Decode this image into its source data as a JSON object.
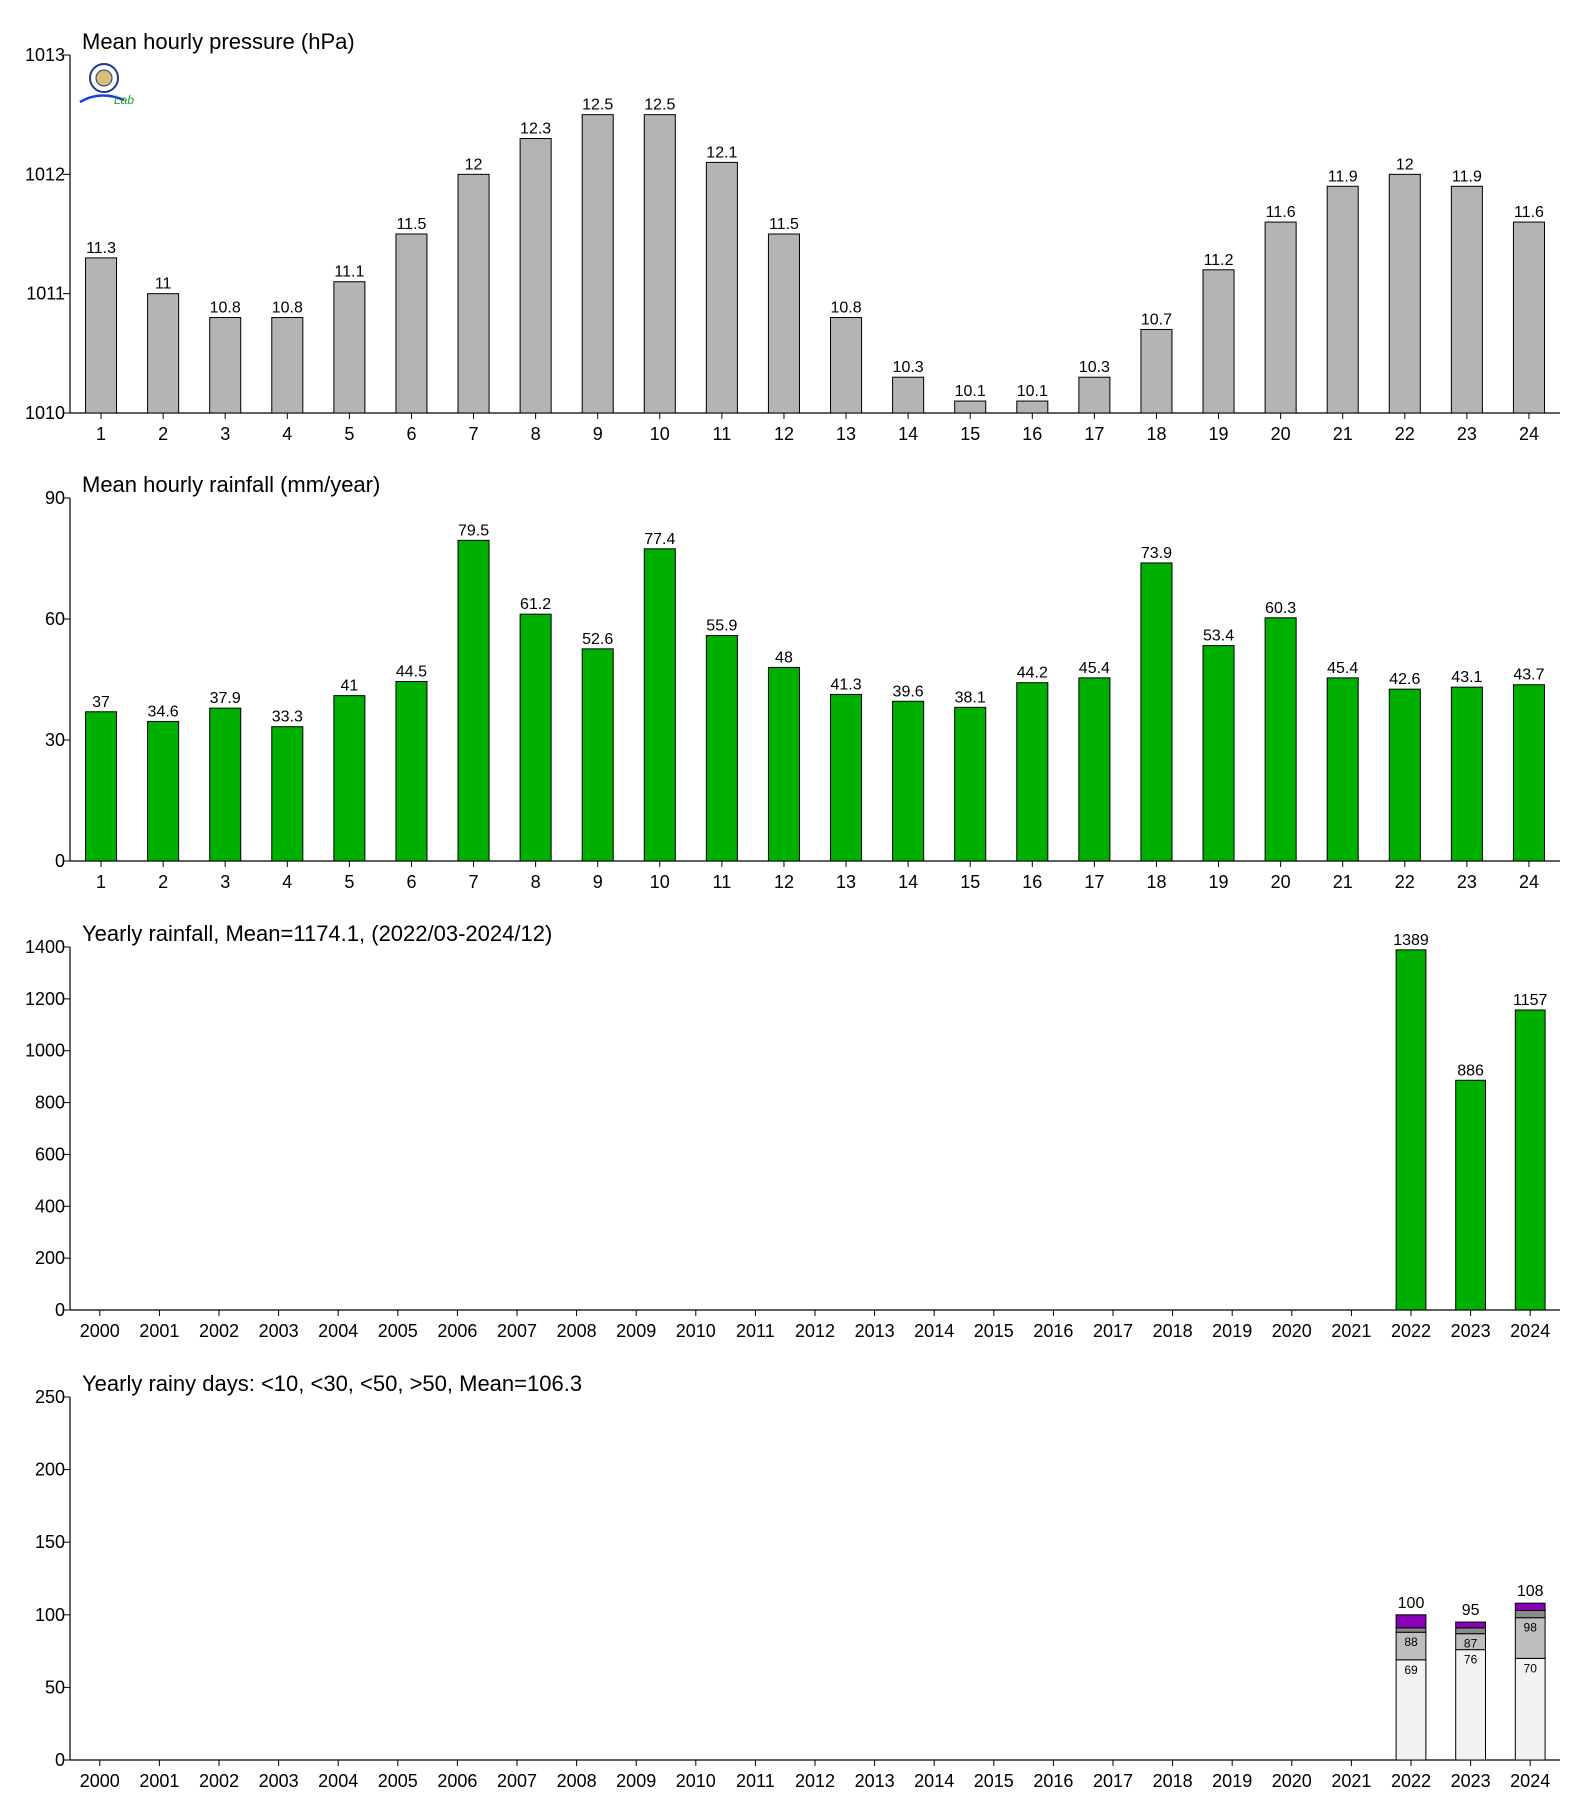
{
  "chart_data": [
    {
      "type": "bar",
      "title": "Mean hourly pressure (hPa)",
      "categories": [
        "1",
        "2",
        "3",
        "4",
        "5",
        "6",
        "7",
        "8",
        "9",
        "10",
        "11",
        "12",
        "13",
        "14",
        "15",
        "16",
        "17",
        "18",
        "19",
        "20",
        "21",
        "22",
        "23",
        "24"
      ],
      "values": [
        1011.3,
        1011.0,
        1010.8,
        1010.8,
        1011.1,
        1011.5,
        1012.0,
        1012.3,
        1012.5,
        1012.5,
        1012.1,
        1011.5,
        1010.8,
        1010.3,
        1010.1,
        1010.1,
        1010.3,
        1010.7,
        1011.2,
        1011.6,
        1011.9,
        1012.0,
        1011.9,
        1011.6
      ],
      "value_labels": [
        "11.3",
        "11",
        "10.8",
        "10.8",
        "11.1",
        "11.5",
        "12",
        "12.3",
        "12.5",
        "12.5",
        "12.1",
        "11.5",
        "10.8",
        "10.3",
        "10.1",
        "10.1",
        "10.3",
        "10.7",
        "11.2",
        "11.6",
        "11.9",
        "12",
        "11.9",
        "11.6"
      ],
      "ylim": [
        1010,
        1013
      ],
      "yticks": [
        "1010",
        "1011",
        "1012",
        "1013"
      ],
      "bar_color": "#b4b4b4"
    },
    {
      "type": "bar",
      "title": "Mean hourly rainfall (mm/year)",
      "categories": [
        "1",
        "2",
        "3",
        "4",
        "5",
        "6",
        "7",
        "8",
        "9",
        "10",
        "11",
        "12",
        "13",
        "14",
        "15",
        "16",
        "17",
        "18",
        "19",
        "20",
        "21",
        "22",
        "23",
        "24"
      ],
      "values": [
        37,
        34.6,
        37.9,
        33.3,
        41,
        44.5,
        79.5,
        61.2,
        52.6,
        77.4,
        55.9,
        48,
        41.3,
        39.6,
        38.1,
        44.2,
        45.4,
        73.9,
        53.4,
        60.3,
        45.4,
        42.6,
        43.1,
        43.7
      ],
      "value_labels": [
        "37",
        "34.6",
        "37.9",
        "33.3",
        "41",
        "44.5",
        "79.5",
        "61.2",
        "52.6",
        "77.4",
        "55.9",
        "48",
        "41.3",
        "39.6",
        "38.1",
        "44.2",
        "45.4",
        "73.9",
        "53.4",
        "60.3",
        "45.4",
        "42.6",
        "43.1",
        "43.7"
      ],
      "ylim": [
        0,
        90
      ],
      "yticks": [
        "0",
        "30",
        "60",
        "90"
      ],
      "bar_color": "#00b000"
    },
    {
      "type": "bar",
      "title": "Yearly rainfall, Mean=1174.1, (2022/03-2024/12)",
      "categories": [
        "2000",
        "2001",
        "2002",
        "2003",
        "2004",
        "2005",
        "2006",
        "2007",
        "2008",
        "2009",
        "2010",
        "2011",
        "2012",
        "2013",
        "2014",
        "2015",
        "2016",
        "2017",
        "2018",
        "2019",
        "2020",
        "2021",
        "2022",
        "2023",
        "2024"
      ],
      "values": [
        null,
        null,
        null,
        null,
        null,
        null,
        null,
        null,
        null,
        null,
        null,
        null,
        null,
        null,
        null,
        null,
        null,
        null,
        null,
        null,
        null,
        null,
        1389,
        886,
        1157
      ],
      "value_labels": [
        "",
        "",
        "",
        "",
        "",
        "",
        "",
        "",
        "",
        "",
        "",
        "",
        "",
        "",
        "",
        "",
        "",
        "",
        "",
        "",
        "",
        "",
        "1389",
        "886",
        "1157"
      ],
      "ylim": [
        0,
        1400
      ],
      "yticks": [
        "0",
        "200",
        "400",
        "600",
        "800",
        "1000",
        "1200",
        "1400"
      ],
      "bar_color": "#00b000"
    },
    {
      "type": "stacked-bar",
      "title": "Yearly rainy days: <10, <30, <50, >50, Mean=106.3",
      "categories": [
        "2000",
        "2001",
        "2002",
        "2003",
        "2004",
        "2005",
        "2006",
        "2007",
        "2008",
        "2009",
        "2010",
        "2011",
        "2012",
        "2013",
        "2014",
        "2015",
        "2016",
        "2017",
        "2018",
        "2019",
        "2020",
        "2021",
        "2022",
        "2023",
        "2024"
      ],
      "ylim": [
        0,
        250
      ],
      "yticks": [
        "0",
        "50",
        "100",
        "150",
        "200",
        "250"
      ],
      "stacks": [
        {
          "category": "2022",
          "cumulative": [
            69,
            88,
            91,
            100
          ],
          "segment_labels": [
            "69",
            "88",
            "",
            ""
          ],
          "total_label": "100"
        },
        {
          "category": "2023",
          "cumulative": [
            76,
            87,
            91,
            95
          ],
          "segment_labels": [
            "76",
            "87",
            "",
            ""
          ],
          "total_label": "95"
        },
        {
          "category": "2024",
          "cumulative": [
            70,
            98,
            103,
            108
          ],
          "segment_labels": [
            "70",
            "98",
            "",
            ""
          ],
          "total_label": "108"
        }
      ],
      "segment_colors": [
        "#f2f2f2",
        "#bebebe",
        "#8a8a8a",
        "#8a00b8"
      ]
    }
  ],
  "logo": {
    "text": "Lab",
    "colors": {
      "emblem": "#1a3a8a",
      "script_blue": "#1f3fd0",
      "script_green": "#20a020"
    }
  }
}
